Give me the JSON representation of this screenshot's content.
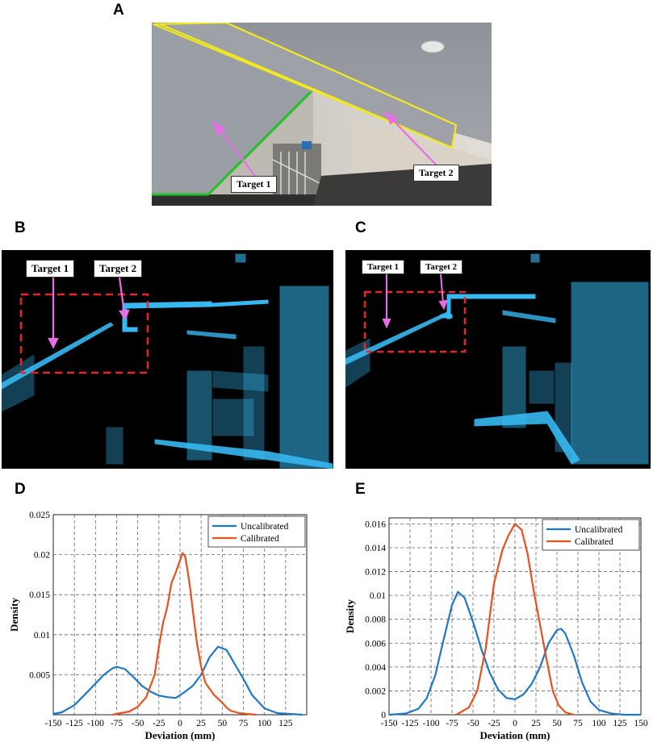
{
  "figure": {
    "panels": [
      {
        "letter": "A"
      },
      {
        "letter": "B"
      },
      {
        "letter": "C"
      },
      {
        "letter": "D"
      },
      {
        "letter": "E"
      }
    ],
    "photo": {
      "labels": {
        "target1": "Target 1",
        "target2": "Target 2"
      },
      "colors": {
        "target1_outline": "#22c422",
        "target2_outline": "#f2ea1e",
        "arrow": "#e86ee8"
      }
    },
    "pointcloud_b": {
      "labels": {
        "target1": "Target 1",
        "target2": "Target 2"
      },
      "colors": {
        "points": "#37b8f0",
        "roi": "#e8262a"
      }
    },
    "pointcloud_c": {
      "labels": {
        "target1": "Target 1",
        "target2": "Target 2"
      },
      "colors": {
        "points": "#37b8f0",
        "roi": "#e8262a"
      }
    }
  },
  "chart_data": [
    {
      "panel": "D",
      "type": "line",
      "xlabel": "Deviation (mm)",
      "ylabel": "Density",
      "xlim": [
        -150,
        150
      ],
      "ylim": [
        0,
        0.025
      ],
      "xticks": [
        "-150",
        "-125",
        "-100",
        "-75",
        "-50",
        "-25",
        "0",
        "25",
        "50",
        "75",
        "100",
        "125"
      ],
      "yticks": [
        "0.005",
        "0.01",
        "0.015",
        "0.02",
        "0.025"
      ],
      "xtick_values": [
        -150,
        -125,
        -100,
        -75,
        -50,
        -25,
        0,
        25,
        50,
        75,
        100,
        125
      ],
      "ytick_values": [
        0.005,
        0.01,
        0.015,
        0.02,
        0.025
      ],
      "grid": true,
      "legend_position": "top-right",
      "series": [
        {
          "name": "Uncalibrated",
          "color": "#1f77c4",
          "x": [
            -150,
            -140,
            -125,
            -110,
            -100,
            -90,
            -80,
            -75,
            -65,
            -55,
            -45,
            -35,
            -25,
            -15,
            -5,
            5,
            15,
            25,
            35,
            45,
            55,
            65,
            75,
            85,
            100,
            115,
            130,
            145
          ],
          "y": [
            0.0001,
            0.0003,
            0.0012,
            0.0028,
            0.0039,
            0.005,
            0.0058,
            0.006,
            0.0057,
            0.0047,
            0.0036,
            0.0029,
            0.0024,
            0.0022,
            0.0021,
            0.0028,
            0.0036,
            0.005,
            0.0072,
            0.0085,
            0.0081,
            0.0063,
            0.0045,
            0.0025,
            0.0008,
            0.0002,
            0.0001,
            0.0
          ]
        },
        {
          "name": "Calibrated",
          "color": "#e8501e",
          "x": [
            -80,
            -60,
            -50,
            -40,
            -30,
            -25,
            -20,
            -15,
            -10,
            -5,
            0,
            3,
            6,
            9,
            12,
            15,
            20,
            25,
            30,
            40,
            50,
            55,
            60,
            70,
            80,
            90
          ],
          "y": [
            0.0,
            0.0004,
            0.001,
            0.0022,
            0.005,
            0.0085,
            0.0115,
            0.0135,
            0.0165,
            0.0178,
            0.0193,
            0.0202,
            0.0198,
            0.018,
            0.0158,
            0.0132,
            0.009,
            0.006,
            0.004,
            0.0025,
            0.0015,
            0.0009,
            0.0005,
            0.0002,
            0.0001,
            0.0
          ]
        }
      ]
    },
    {
      "panel": "E",
      "type": "line",
      "xlabel": "Deviation (mm)",
      "ylabel": "Density",
      "xlim": [
        -150,
        150
      ],
      "ylim": [
        0,
        0.0165
      ],
      "xticks": [
        "-150",
        "-125",
        "-100",
        "-75",
        "-50",
        "-25",
        "0",
        "25",
        "50",
        "75",
        "100",
        "125",
        "150"
      ],
      "yticks": [
        "0",
        "0.002",
        "0.004",
        "0.006",
        "0.008",
        "0.01",
        "0.012",
        "0.014",
        "0.016"
      ],
      "xtick_values": [
        -150,
        -125,
        -100,
        -75,
        -50,
        -25,
        0,
        25,
        50,
        75,
        100,
        125,
        150
      ],
      "ytick_values": [
        0,
        0.002,
        0.004,
        0.006,
        0.008,
        0.01,
        0.012,
        0.014,
        0.016
      ],
      "grid": true,
      "legend_position": "top-right",
      "series": [
        {
          "name": "Uncalibrated",
          "color": "#1f77c4",
          "x": [
            -150,
            -130,
            -115,
            -105,
            -95,
            -85,
            -75,
            -68,
            -60,
            -50,
            -40,
            -30,
            -20,
            -10,
            0,
            10,
            20,
            30,
            40,
            50,
            55,
            60,
            70,
            80,
            90,
            100,
            115,
            130,
            150
          ],
          "y": [
            0.0,
            0.0001,
            0.0005,
            0.0014,
            0.0033,
            0.0063,
            0.0092,
            0.0103,
            0.0098,
            0.0078,
            0.0055,
            0.0035,
            0.0021,
            0.0014,
            0.0013,
            0.0017,
            0.0026,
            0.004,
            0.006,
            0.0071,
            0.0072,
            0.0068,
            0.005,
            0.0027,
            0.0011,
            0.0004,
            0.0001,
            0.0,
            0.0
          ]
        },
        {
          "name": "Calibrated",
          "color": "#e8501e",
          "x": [
            -70,
            -55,
            -45,
            -35,
            -25,
            -15,
            -8,
            0,
            8,
            15,
            22,
            30,
            38,
            45,
            52,
            60,
            70
          ],
          "y": [
            0.0,
            0.0006,
            0.002,
            0.0055,
            0.011,
            0.0138,
            0.015,
            0.016,
            0.0155,
            0.0135,
            0.0105,
            0.0075,
            0.0045,
            0.002,
            0.0008,
            0.0002,
            0.0
          ]
        }
      ]
    }
  ]
}
